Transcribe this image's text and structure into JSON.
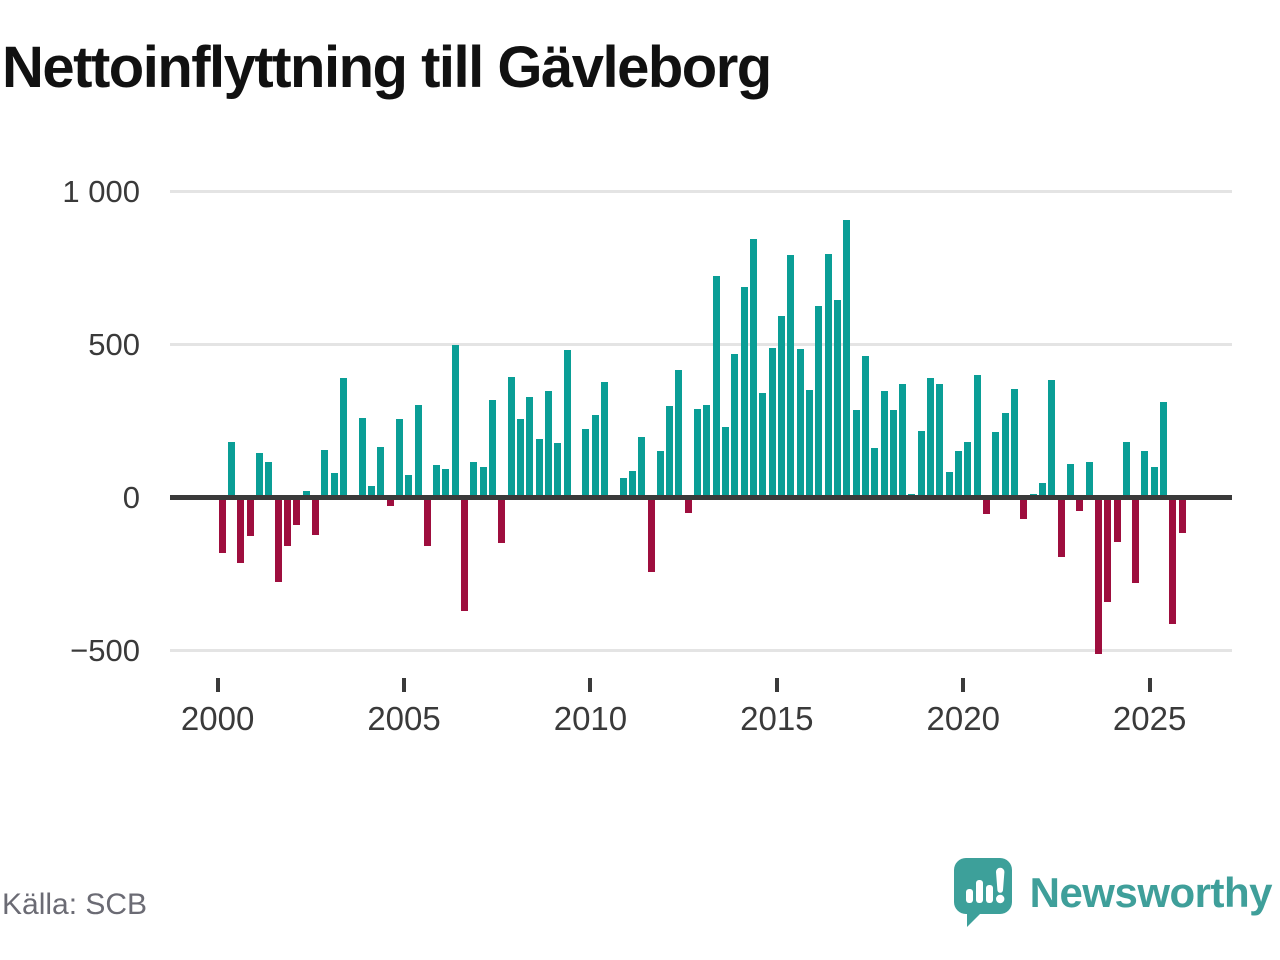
{
  "title": "Nettoinflyttning till Gävleborg",
  "source": "Källa: SCB",
  "brand": "Newsworthy",
  "colors": {
    "positive": "#0a9e96",
    "negative": "#9e0e3e",
    "axis": "#3a3a3a",
    "grid": "#e4e4e4",
    "tick_label": "#3a3a3a",
    "source_text": "#6b6b74",
    "brand_teal": "#3f9f9a",
    "title_text": "#111111"
  },
  "chart_data": {
    "type": "bar",
    "title": "Nettoinflyttning till Gävleborg",
    "xlabel": "",
    "ylabel": "",
    "start_quarter": "2000 Q1",
    "end_quarter": "2025 Q4",
    "quarters_per_year": 4,
    "values": [
      -183,
      180,
      -215,
      -126,
      146,
      117,
      -275,
      -158,
      -90,
      21,
      -122,
      154,
      81,
      390,
      5,
      261,
      36,
      164,
      -28,
      256,
      72,
      302,
      -160,
      106,
      93,
      500,
      -370,
      116,
      99,
      317,
      -148,
      394,
      257,
      327,
      190,
      347,
      177,
      481,
      5,
      223,
      270,
      377,
      3,
      65,
      86,
      198,
      -245,
      152,
      300,
      416,
      -51,
      289,
      302,
      723,
      232,
      469,
      687,
      845,
      340,
      487,
      594,
      793,
      486,
      351,
      627,
      797,
      644,
      906,
      287,
      462,
      161,
      347,
      287,
      371,
      11,
      218,
      391,
      371,
      83,
      153,
      183,
      400,
      -54,
      213,
      276,
      355,
      -71,
      11,
      49,
      385,
      -196,
      109,
      -44,
      116,
      -511,
      -340,
      -147,
      181,
      -280,
      152,
      100,
      312,
      -413,
      -116
    ],
    "x_ticks": [
      2000,
      2005,
      2010,
      2015,
      2020,
      2025
    ],
    "x_tick_labels": [
      "2000",
      "2005",
      "2010",
      "2015",
      "2020",
      "2025"
    ],
    "y_ticks": [
      1000,
      500,
      0,
      -500
    ],
    "y_tick_labels": [
      "1 000",
      "500",
      "0",
      "−500"
    ],
    "ylim": [
      -560,
      1020
    ],
    "grid": "horizontal",
    "legend": "none"
  }
}
